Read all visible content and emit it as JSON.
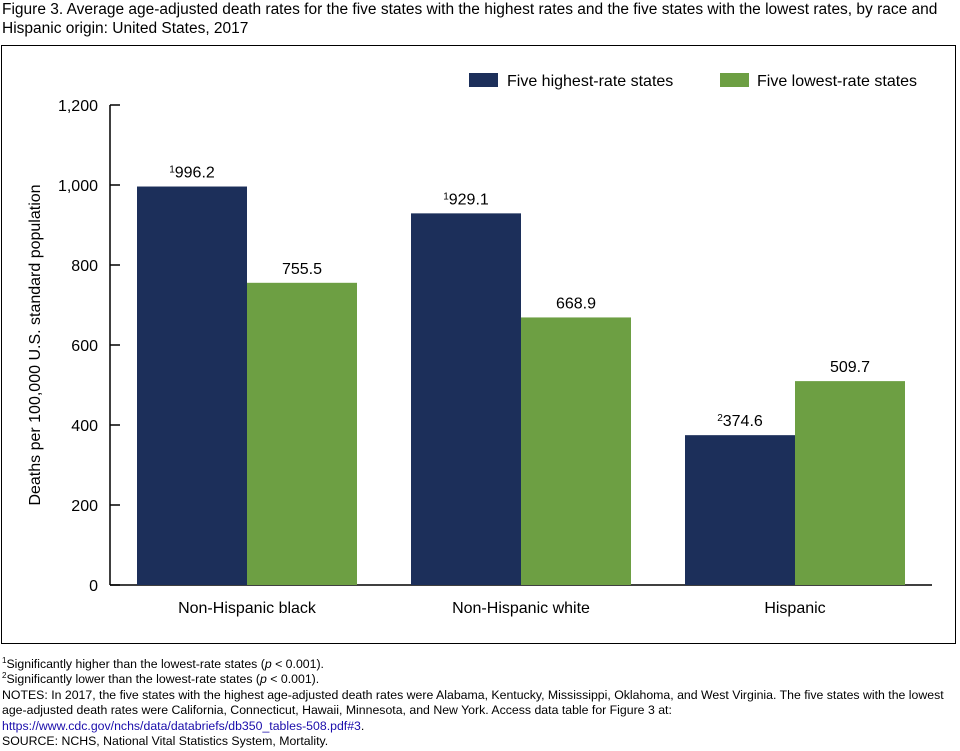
{
  "title": "Figure 3. Average age-adjusted death rates for the five states with the highest rates and the five states with the lowest rates, by race and Hispanic origin: United States, 2017",
  "chart_data": {
    "type": "bar",
    "categories": [
      "Non-Hispanic black",
      "Non-Hispanic white",
      "Hispanic"
    ],
    "series": [
      {
        "name": "Five highest-rate states",
        "color": "#1c2f5a",
        "values": [
          996.2,
          929.1,
          374.6
        ],
        "labels": [
          "996.2",
          "929.1",
          "374.6"
        ],
        "label_marks": [
          "1",
          "1",
          "2"
        ]
      },
      {
        "name": "Five lowest-rate states",
        "color": "#6d9f43",
        "values": [
          755.5,
          668.9,
          509.7
        ],
        "labels": [
          "755.5",
          "668.9",
          "509.7"
        ],
        "label_marks": [
          "",
          "",
          ""
        ]
      }
    ],
    "ylabel": "Deaths per 100,000 U.S. standard population",
    "xlabel": "",
    "ylim": [
      0,
      1200
    ],
    "yticks": [
      0,
      200,
      400,
      600,
      800,
      1000,
      1200
    ],
    "ytick_labels": [
      "0",
      "200",
      "400",
      "600",
      "800",
      "1,000",
      "1,200"
    ],
    "grid": false,
    "legend": "top-right"
  },
  "footnotes": {
    "f1_mark": "1",
    "f1_text": "Significantly higher than the lowest-rate states (",
    "f1_p": "p",
    "f1_end": " < 0.001).",
    "f2_mark": "2",
    "f2_text": "Significantly lower than the lowest-rate states (",
    "f2_p": "p",
    "f2_end": " < 0.001).",
    "notes_text": "NOTES: In 2017, the five states with the highest age-adjusted death rates were Alabama, Kentucky, Mississippi, Oklahoma, and West Virginia. The five states with the lowest age-adjusted death rates were California, Connecticut, Hawaii, Minnesota, and New York. Access data table for Figure 3 at: ",
    "notes_link": "https://www.cdc.gov/nchs/data/databriefs/db350_tables-508.pdf#3",
    "notes_end": ".",
    "source": "SOURCE: NCHS, National Vital Statistics System, Mortality."
  }
}
